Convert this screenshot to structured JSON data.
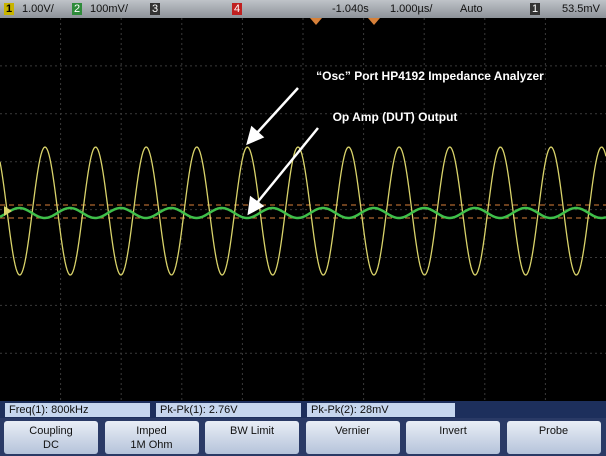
{
  "status_bar": {
    "ch1_label": "1",
    "ch1_scale": "1.00V/",
    "ch2_label": "2",
    "ch2_scale": "100mV/",
    "ch3_label": "3",
    "ch4_label": "4",
    "time_offset": "-1.040s",
    "time_scale": "1.000µs/",
    "trigger_mode": "Auto",
    "trigger_source": "1",
    "trigger_level": "53.5mV"
  },
  "annotations": [
    "“Osc” Port HP4192 Impedance Analyzer",
    "Op Amp (DUT) Output"
  ],
  "measurements": [
    "Freq(1): 800kHz",
    "Pk-Pk(1): 2.76V",
    "Pk-Pk(2): 28mV"
  ],
  "softkeys": [
    {
      "label": "Coupling",
      "value": "DC"
    },
    {
      "label": "Imped",
      "value": "1M Ohm"
    },
    {
      "label": "BW Limit"
    },
    {
      "label": "Vernier"
    },
    {
      "label": "Invert"
    },
    {
      "label": "Probe"
    }
  ]
}
